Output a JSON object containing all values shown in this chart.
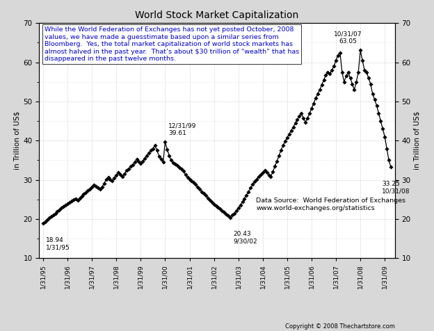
{
  "title": "World Stock Market Capitalization",
  "ylabel_left": "in Trillion of US$",
  "ylabel_right": "in Trillion of US$",
  "ylim": [
    10,
    70
  ],
  "yticks": [
    10,
    20,
    30,
    40,
    50,
    60,
    70
  ],
  "annotation_box_text": "While the World Federation of Exchanges has not yet posted October, 2008\nvalues, we have made a guesstimate based upon a similar series from\nBloomberg.  Yes, the total market capitalization of world stock markets has\nalmost halved in the past year.  That’s about $30 trillion of “wealth” that has\ndisappeared in the past twelve months.",
  "data_source_text": "Data Source:  World Federation of Exchanges\nwww.world-exchanges.org/statistics",
  "copyright_text": "Copyright © 2008 Thechartstore.com",
  "series": [
    18.94,
    19.26,
    19.89,
    20.35,
    20.71,
    21.1,
    21.45,
    21.87,
    22.3,
    22.8,
    23.2,
    23.55,
    23.9,
    24.25,
    24.6,
    25.0,
    25.1,
    24.8,
    25.4,
    25.9,
    26.4,
    26.8,
    27.2,
    27.6,
    28.1,
    28.7,
    28.4,
    27.9,
    27.6,
    28.2,
    29.1,
    30.1,
    30.6,
    30.2,
    29.8,
    30.5,
    31.2,
    31.8,
    31.4,
    30.8,
    31.5,
    32.4,
    32.8,
    33.4,
    33.8,
    34.5,
    35.2,
    34.8,
    34.2,
    34.7,
    35.5,
    36.2,
    36.8,
    37.5,
    38.0,
    38.8,
    37.5,
    36.0,
    35.2,
    34.6,
    39.61,
    37.8,
    36.2,
    35.0,
    34.4,
    34.0,
    33.6,
    33.2,
    32.8,
    32.2,
    31.4,
    30.6,
    30.2,
    29.8,
    29.4,
    28.8,
    28.2,
    27.7,
    27.0,
    26.5,
    26.0,
    25.4,
    24.8,
    24.3,
    23.8,
    23.4,
    23.0,
    22.6,
    22.1,
    21.7,
    21.3,
    20.8,
    20.43,
    21.0,
    21.5,
    22.1,
    22.8,
    23.6,
    24.4,
    25.2,
    26.1,
    27.0,
    27.9,
    28.8,
    29.5,
    30.2,
    30.8,
    31.4,
    31.9,
    32.4,
    31.8,
    31.2,
    30.9,
    32.1,
    33.5,
    34.8,
    36.2,
    37.6,
    38.8,
    39.8,
    40.8,
    41.7,
    42.6,
    43.5,
    44.5,
    45.4,
    46.3,
    46.9,
    45.8,
    44.7,
    45.8,
    47.0,
    48.2,
    49.5,
    50.8,
    52.0,
    53.0,
    54.2,
    55.5,
    56.8,
    57.5,
    57.1,
    58.0,
    59.0,
    60.5,
    61.8,
    62.5,
    57.5,
    55.0,
    56.5,
    57.5,
    56.0,
    54.5,
    53.0,
    55.0,
    57.5,
    63.05,
    60.5,
    58.0,
    57.5,
    56.0,
    54.5,
    52.0,
    50.5,
    49.0,
    47.0,
    45.0,
    43.0,
    41.0,
    38.0,
    35.0,
    33.25
  ],
  "xtick_labels": [
    "1/31/95",
    "1/31/96",
    "1/31/97",
    "1/31/98",
    "1/31/99",
    "1/31/00",
    "1/31/01",
    "1/31/02",
    "1/31/03",
    "1/31/04",
    "1/31/05",
    "1/31/06",
    "1/31/07",
    "1/31/08",
    "1/31/09"
  ],
  "xtick_positions": [
    0,
    12,
    24,
    36,
    48,
    60,
    72,
    84,
    96,
    108,
    120,
    132,
    144,
    156,
    168
  ],
  "annotation_text_color": "#0000CC",
  "line_color": "#000000",
  "bg_color": "#d8d8d8",
  "plot_bg": "#ffffff",
  "grid_color": "#b0b0b0",
  "grid_color_minor": "#d0d0d0"
}
